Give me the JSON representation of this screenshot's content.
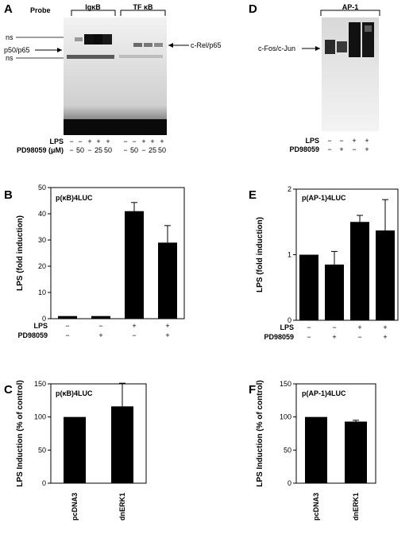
{
  "panels": {
    "A": {
      "letter": "A",
      "probe_label": "Probe",
      "groups": [
        "IgκB",
        "TF κB"
      ],
      "left_labels": [
        "ns",
        "p50/p65",
        "ns"
      ],
      "right_label": "c-Rel/p65",
      "rows": [
        {
          "label": "LPS",
          "values": [
            "−",
            "−",
            "+",
            "+",
            "+",
            "−",
            "−",
            "+",
            "+",
            "+"
          ]
        },
        {
          "label": "PD98059 (μM)",
          "values": [
            "−",
            "50",
            "−",
            "25",
            "50",
            "−",
            "50",
            "−",
            "25",
            "50"
          ]
        }
      ]
    },
    "D": {
      "letter": "D",
      "group": "AP-1",
      "left_label": "c-Fos/c-Jun",
      "rows": [
        {
          "label": "LPS",
          "values": [
            "−",
            "−",
            "+",
            "+"
          ]
        },
        {
          "label": "PD98059",
          "values": [
            "−",
            "+",
            "−",
            "+"
          ]
        }
      ]
    }
  },
  "chart_data": [
    {
      "panel": "B",
      "type": "bar",
      "title": "p(κB)4LUC",
      "ylabel": "LPS (fold induction)",
      "ylim": [
        0,
        50
      ],
      "yticks": [
        0,
        10,
        20,
        30,
        40,
        50
      ],
      "categories": [
        "−/−",
        "−/+",
        "+/−",
        "+/+"
      ],
      "values": [
        1,
        1,
        41,
        29
      ],
      "errors": [
        0,
        0,
        3.3,
        6.5
      ],
      "condition_rows": [
        {
          "label": "LPS",
          "values": [
            "−",
            "−",
            "+",
            "+"
          ]
        },
        {
          "label": "PD98059",
          "values": [
            "−",
            "+",
            "−",
            "+"
          ]
        }
      ]
    },
    {
      "panel": "E",
      "type": "bar",
      "title": "p(AP-1)4LUC",
      "ylabel": "LPS (fold induction)",
      "ylim": [
        0,
        2
      ],
      "yticks": [
        0,
        1,
        2
      ],
      "categories": [
        "−/−",
        "−/+",
        "+/−",
        "+/+"
      ],
      "values": [
        1.0,
        0.85,
        1.5,
        1.37
      ],
      "errors": [
        0,
        0.2,
        0.1,
        0.47
      ],
      "condition_rows": [
        {
          "label": "LPS",
          "values": [
            "−",
            "−",
            "+",
            "+"
          ]
        },
        {
          "label": "PD98059",
          "values": [
            "−",
            "+",
            "−",
            "+"
          ]
        }
      ]
    },
    {
      "panel": "C",
      "type": "bar",
      "title": "p(κB)4LUC",
      "ylabel": "LPS Induction (% of control)",
      "ylim": [
        0,
        150
      ],
      "yticks": [
        0,
        50,
        100,
        150
      ],
      "categories": [
        "pcDNA3",
        "dnERK1"
      ],
      "values": [
        100,
        116
      ],
      "errors": [
        0,
        35
      ]
    },
    {
      "panel": "F",
      "type": "bar",
      "title": "p(AP-1)4LUC",
      "ylabel": "LPS Induction (% of control)",
      "ylim": [
        0,
        150
      ],
      "yticks": [
        0,
        50,
        100,
        150
      ],
      "categories": [
        "pcDNA3",
        "dnERK1"
      ],
      "values": [
        100,
        93
      ],
      "errors": [
        0,
        2
      ]
    }
  ]
}
